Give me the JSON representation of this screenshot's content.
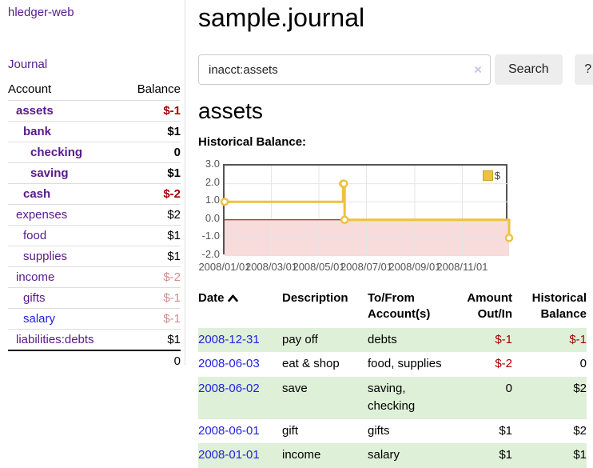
{
  "sidebar": {
    "app_title": "hledger-web",
    "nav": {
      "journal": "Journal"
    },
    "accounts_table": {
      "headers": {
        "account": "Account",
        "balance": "Balance"
      },
      "rows": [
        {
          "name": "assets",
          "level": 1,
          "bold": true,
          "balance": "$-1",
          "balance_tone": "negative",
          "link_tone": "visited"
        },
        {
          "name": "bank",
          "level": 2,
          "bold": true,
          "balance": "$1",
          "balance_tone": "normal",
          "link_tone": "visited"
        },
        {
          "name": "checking",
          "level": 3,
          "bold": true,
          "balance": "0",
          "balance_tone": "normal",
          "link_tone": "visited"
        },
        {
          "name": "saving",
          "level": 3,
          "bold": true,
          "balance": "$1",
          "balance_tone": "normal",
          "link_tone": "visited"
        },
        {
          "name": "cash",
          "level": 2,
          "bold": true,
          "balance": "$-2",
          "balance_tone": "negative",
          "link_tone": "visited"
        },
        {
          "name": "expenses",
          "level": 1,
          "bold": false,
          "balance": "$2",
          "balance_tone": "normal",
          "link_tone": "visited"
        },
        {
          "name": "food",
          "level": 2,
          "bold": false,
          "balance": "$1",
          "balance_tone": "normal",
          "link_tone": "visited"
        },
        {
          "name": "supplies",
          "level": 2,
          "bold": false,
          "balance": "$1",
          "balance_tone": "normal",
          "link_tone": "visited"
        },
        {
          "name": "income",
          "level": 1,
          "bold": false,
          "balance": "$-2",
          "balance_tone": "negative-soft",
          "link_tone": "visited"
        },
        {
          "name": "gifts",
          "level": 2,
          "bold": false,
          "balance": "$-1",
          "balance_tone": "negative-soft",
          "link_tone": "visited"
        },
        {
          "name": "salary",
          "level": 2,
          "bold": false,
          "balance": "$-1",
          "balance_tone": "negative-soft",
          "link_tone": "unvisited"
        },
        {
          "name": "liabilities:debts",
          "level": 1,
          "bold": false,
          "balance": "$1",
          "balance_tone": "normal",
          "link_tone": "visited"
        }
      ],
      "total": "0"
    }
  },
  "main": {
    "title": "sample.journal",
    "search": {
      "value": "inacct:assets",
      "clear_icon": "×",
      "button": "Search",
      "help_button": "?"
    },
    "account_heading": "assets",
    "chart_label": "Historical Balance:"
  },
  "register": {
    "headers": {
      "date": "Date",
      "description": "Description",
      "tofrom": "To/From Account(s)",
      "amount": "Amount Out/In",
      "balance": "Historical Balance"
    },
    "sort": {
      "column": "date",
      "direction": "ascending"
    },
    "rows": [
      {
        "date": "2008-12-31",
        "description": "pay off",
        "accounts": "debts",
        "amount": "$-1",
        "amount_negative": true,
        "balance": "$-1",
        "balance_negative": true
      },
      {
        "date": "2008-06-03",
        "description": "eat & shop",
        "accounts": "food, supplies",
        "amount": "$-2",
        "amount_negative": true,
        "balance": "0",
        "balance_negative": false
      },
      {
        "date": "2008-06-02",
        "description": "save",
        "accounts": "saving, checking",
        "amount": "0",
        "amount_negative": false,
        "balance": "$2",
        "balance_negative": false
      },
      {
        "date": "2008-06-01",
        "description": "gift",
        "accounts": "gifts",
        "amount": "$1",
        "amount_negative": false,
        "balance": "$2",
        "balance_negative": false
      },
      {
        "date": "2008-01-01",
        "description": "income",
        "accounts": "salary",
        "amount": "$1",
        "amount_negative": false,
        "balance": "$1",
        "balance_negative": false
      }
    ]
  },
  "chart_data": {
    "type": "line",
    "step": true,
    "title": "Historical Balance",
    "series": [
      {
        "name": "$",
        "color": "#edc240",
        "points": [
          [
            "2008-01-01",
            1
          ],
          [
            "2008-06-01",
            2
          ],
          [
            "2008-06-02",
            2
          ],
          [
            "2008-06-03",
            0
          ],
          [
            "2008-12-31",
            -1
          ]
        ]
      }
    ],
    "x_start": "2008-01-01",
    "x_span_days": 365,
    "xticks": [
      "2008/01/01",
      "2008/03/01",
      "2008/05/01",
      "2008/07/01",
      "2008/09/01",
      "2008/11/01"
    ],
    "yticks": [
      3.0,
      2.0,
      1.0,
      0.0,
      -1.0,
      -2.0
    ],
    "ylim": [
      -2,
      3
    ],
    "grid": true,
    "legend_position": "top-right",
    "negative_region_color": "#f8dbdb",
    "zero_line_color": "#8b0000",
    "grid_color": "#e6e6e6",
    "border_color": "#545454"
  },
  "colors": {
    "link_visited_purple": "#571a8b",
    "link_blue": "#2222dd",
    "negative_strong": "#a40000",
    "negative_soft": "#c98f8f",
    "stripe_green": "#dff0d8",
    "series_yellow": "#edc240",
    "button_gray": "#ededed"
  }
}
